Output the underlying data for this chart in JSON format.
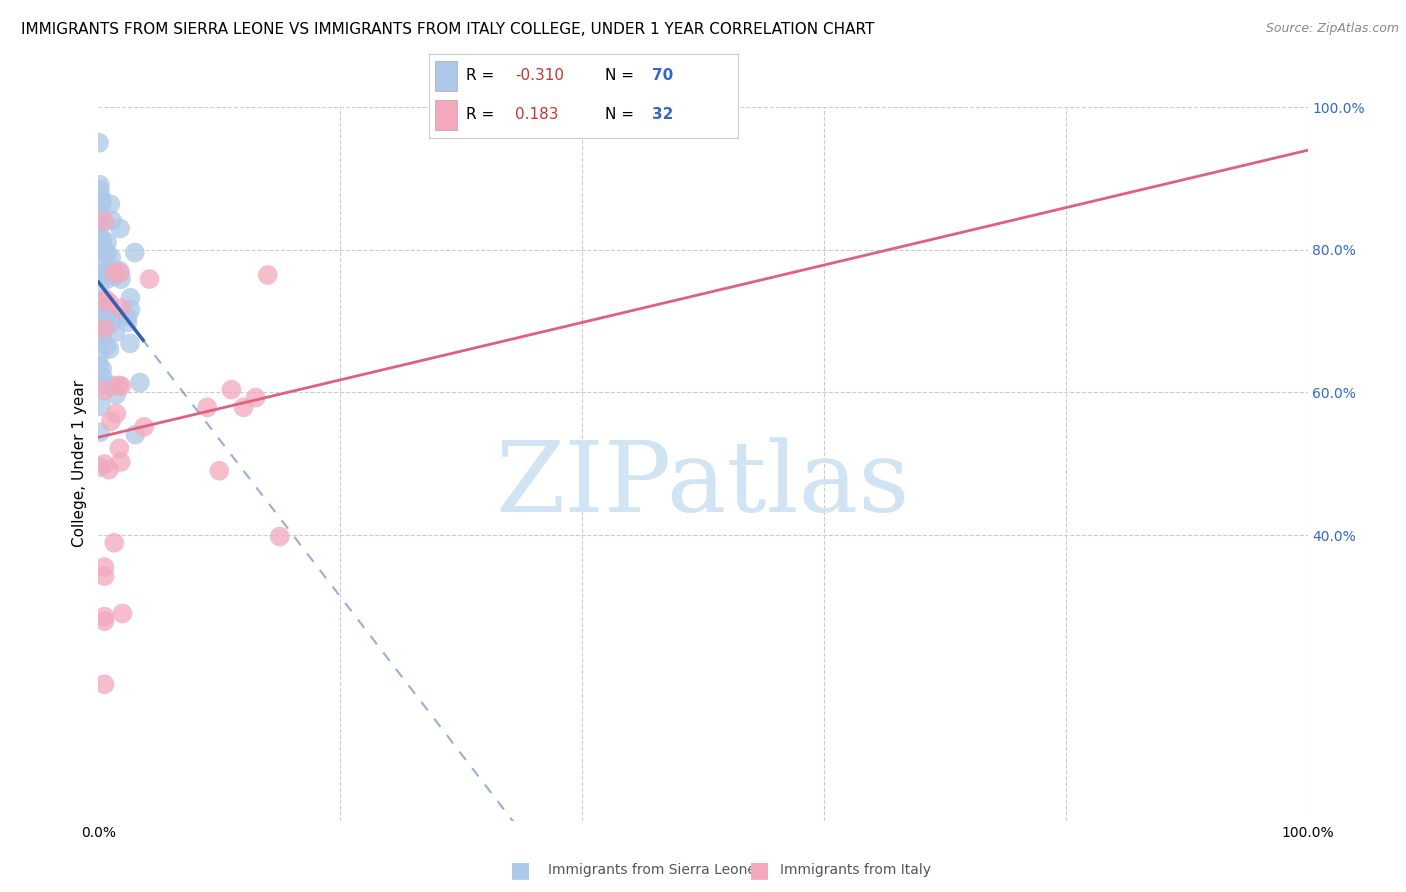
{
  "title": "IMMIGRANTS FROM SIERRA LEONE VS IMMIGRANTS FROM ITALY COLLEGE, UNDER 1 YEAR CORRELATION CHART",
  "source": "Source: ZipAtlas.com",
  "ylabel_left": "College, Under 1 year",
  "y_tick_labels_right": [
    "40.0%",
    "60.0%",
    "80.0%",
    "100.0%"
  ],
  "y_ticks_right": [
    40,
    60,
    80,
    100
  ],
  "xlim": [
    0,
    100
  ],
  "ylim": [
    0,
    100
  ],
  "sierra_leone_color": "#adc8e8",
  "italy_color": "#f4a8bc",
  "sierra_leone_R": -0.31,
  "sierra_leone_N": 70,
  "italy_R": 0.183,
  "italy_N": 32,
  "sierra_leone_label": "Immigrants from Sierra Leone",
  "italy_label": "Immigrants from Italy",
  "sierra_leone_line_color": "#3060b0",
  "italy_line_color": "#e06080",
  "background_color": "#ffffff",
  "grid_color": "#cccccc",
  "watermark_text": "ZIPatlas",
  "watermark_color": "#d0e4f4",
  "legend_box_color": "#ffffff",
  "legend_border_color": "#cccccc",
  "r_value_color": "#cc3333",
  "n_value_color": "#3366cc",
  "right_axis_color": "#3366cc",
  "source_color": "#888888",
  "sl_x": [
    0.2,
    0.3,
    0.4,
    0.5,
    0.6,
    0.7,
    0.8,
    0.9,
    1.0,
    1.1,
    0.15,
    0.25,
    0.35,
    0.45,
    0.55,
    0.65,
    0.75,
    0.85,
    0.95,
    1.05,
    0.1,
    0.2,
    0.3,
    0.4,
    0.5,
    0.6,
    0.7,
    0.8,
    0.9,
    1.0,
    0.15,
    0.25,
    0.35,
    0.45,
    0.55,
    0.65,
    0.75,
    0.85,
    0.95,
    1.05,
    0.2,
    0.3,
    0.4,
    0.5,
    0.6,
    0.7,
    0.8,
    0.9,
    1.0,
    1.2,
    1.5,
    1.8,
    2.0,
    2.5,
    3.0,
    1.3,
    1.6,
    0.4,
    0.6,
    0.8,
    1.0,
    1.2,
    1.5,
    2.0,
    0.3,
    0.5,
    0.7,
    0.9,
    1.1,
    0.4
  ],
  "sl_y": [
    75,
    78,
    74,
    77,
    73,
    76,
    72,
    70,
    68,
    66,
    82,
    80,
    79,
    76,
    74,
    73,
    71,
    69,
    67,
    65,
    84,
    83,
    81,
    80,
    78,
    76,
    75,
    73,
    71,
    70,
    86,
    85,
    83,
    82,
    80,
    79,
    77,
    75,
    73,
    72,
    88,
    85,
    82,
    80,
    78,
    76,
    74,
    72,
    70,
    65,
    60,
    55,
    52,
    48,
    44,
    63,
    58,
    78,
    75,
    72,
    69,
    66,
    62,
    56,
    80,
    77,
    74,
    71,
    68,
    76
  ],
  "it_x": [
    1.5,
    2.0,
    3.0,
    5.0,
    2.5,
    4.0,
    1.8,
    3.5,
    6.0,
    2.2,
    1.3,
    4.5,
    2.8,
    7.0,
    3.2,
    1.8,
    2.5,
    3.8,
    4.8,
    1.5,
    2.0,
    2.8,
    3.5,
    2.0,
    5.5,
    1.5,
    2.5,
    3.0,
    4.5,
    15.0,
    1.8,
    2.2
  ],
  "it_y": [
    67,
    70,
    68,
    73,
    65,
    71,
    64,
    69,
    77,
    63,
    62,
    72,
    66,
    78,
    68,
    60,
    64,
    70,
    72,
    58,
    62,
    65,
    68,
    55,
    75,
    45,
    50,
    42,
    38,
    30,
    35,
    28
  ]
}
